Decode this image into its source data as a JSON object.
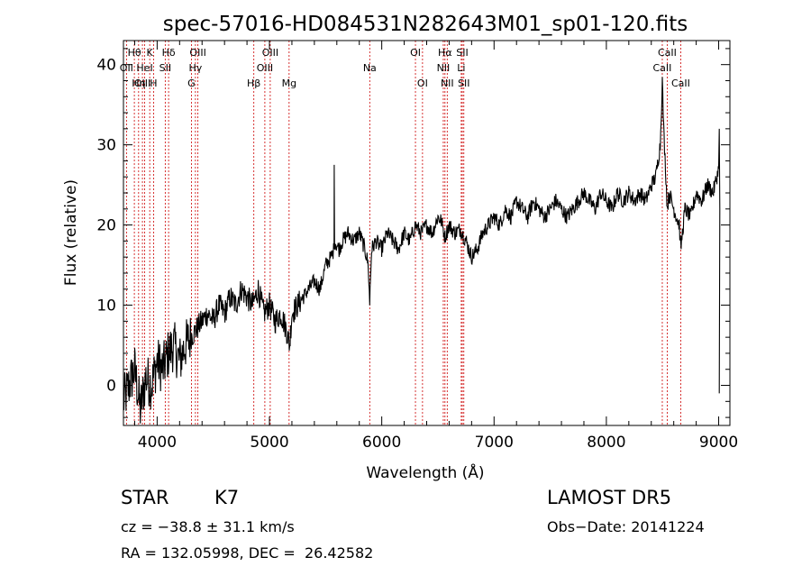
{
  "chart_data": {
    "type": "line",
    "title": "spec-57016-HD084531N282643M01_sp01-120.fits",
    "xlabel": "Wavelength (Å)",
    "ylabel": "Flux (relative)",
    "xlim": [
      3700,
      9100
    ],
    "ylim": [
      -5,
      43
    ],
    "xticks": [
      4000,
      5000,
      6000,
      7000,
      8000,
      9000
    ],
    "yticks": [
      0,
      10,
      20,
      30,
      40
    ],
    "grid": false,
    "series": [
      {
        "x": [
          3700,
          3750,
          3800,
          3850,
          3900,
          3950,
          4000,
          4050,
          4100,
          4150,
          4200,
          4250,
          4300,
          4350,
          4400,
          4450,
          4500,
          4550,
          4600,
          4650,
          4700,
          4750,
          4800,
          4850,
          4900,
          4950,
          5000,
          5050,
          5100,
          5150,
          5180,
          5200,
          5250,
          5300,
          5350,
          5400,
          5450,
          5500,
          5550,
          5575,
          5577,
          5580,
          5620,
          5650,
          5700,
          5750,
          5800,
          5850,
          5880,
          5893,
          5896,
          5910,
          5950,
          6000,
          6050,
          6100,
          6150,
          6200,
          6250,
          6300,
          6350,
          6400,
          6450,
          6500,
          6530,
          6563,
          6600,
          6650,
          6700,
          6750,
          6800,
          6850,
          6900,
          6950,
          7000,
          7050,
          7100,
          7150,
          7200,
          7250,
          7300,
          7350,
          7400,
          7450,
          7500,
          7550,
          7600,
          7650,
          7700,
          7750,
          7800,
          7850,
          7900,
          7950,
          8000,
          8050,
          8100,
          8150,
          8200,
          8250,
          8300,
          8350,
          8400,
          8440,
          8460,
          8480,
          8498,
          8510,
          8530,
          8542,
          8560,
          8600,
          8650,
          8662,
          8700,
          8750,
          8800,
          8850,
          8900,
          8950,
          9000,
          9005,
          9010
        ],
        "y": [
          -2,
          0,
          2,
          -3,
          1,
          0,
          3,
          2,
          4,
          5,
          3,
          5,
          6,
          7,
          8,
          9,
          8,
          10,
          9,
          11,
          10,
          12,
          11,
          10,
          12,
          9,
          10,
          8,
          9,
          7,
          5,
          9,
          10,
          11,
          12,
          13,
          12,
          15,
          16,
          17,
          27.5,
          18,
          17,
          18,
          19,
          18,
          19,
          17,
          15,
          10,
          12,
          17,
          18,
          17,
          19,
          18,
          17,
          19,
          18,
          20,
          19,
          20,
          19,
          21,
          20.5,
          18.5,
          20,
          19,
          19.5,
          18,
          16,
          17,
          19,
          20,
          21,
          20,
          22,
          21,
          23,
          22,
          21,
          23,
          22,
          21,
          22,
          23,
          22,
          21,
          22,
          23,
          24,
          23,
          22,
          24,
          23,
          22,
          24,
          23,
          24,
          23,
          24,
          23,
          25,
          26,
          28,
          30,
          38,
          32,
          26,
          22,
          24,
          22,
          20,
          17,
          22,
          21,
          24,
          23,
          25,
          24,
          27,
          32,
          22
        ]
      }
    ],
    "lines": [
      {
        "label": "Hθ",
        "x": 3797,
        "row": 0
      },
      {
        "label": "K",
        "x": 3934,
        "row": 0
      },
      {
        "label": "Hδ",
        "x": 4102,
        "row": 0
      },
      {
        "label": "OIII",
        "x": 4363,
        "row": 0
      },
      {
        "label": "OIII",
        "x": 5007,
        "row": 0
      },
      {
        "label": "OI",
        "x": 6300,
        "row": 0
      },
      {
        "label": "Hα",
        "x": 6563,
        "row": 0
      },
      {
        "label": "SII",
        "x": 6717,
        "row": 0
      },
      {
        "label": "CaII",
        "x": 8542,
        "row": 0
      },
      {
        "label": "OII",
        "x": 3727,
        "row": 1
      },
      {
        "label": "HeI",
        "x": 3889,
        "row": 1
      },
      {
        "label": "SII",
        "x": 4072,
        "row": 1
      },
      {
        "label": "Hγ",
        "x": 4341,
        "row": 1
      },
      {
        "label": "OIII",
        "x": 4959,
        "row": 1
      },
      {
        "label": "Na",
        "x": 5893,
        "row": 1
      },
      {
        "label": "NII",
        "x": 6548,
        "row": 1
      },
      {
        "label": "Li",
        "x": 6708,
        "row": 1
      },
      {
        "label": "CaII",
        "x": 8498,
        "row": 1
      },
      {
        "label": "OIII",
        "x": 3869,
        "row": 2
      },
      {
        "label": "Hη",
        "x": 3835,
        "row": 2
      },
      {
        "label": "H",
        "x": 3968,
        "row": 2
      },
      {
        "label": "G",
        "x": 4305,
        "row": 2
      },
      {
        "label": "Hβ",
        "x": 4861,
        "row": 2
      },
      {
        "label": "Mg",
        "x": 5175,
        "row": 2
      },
      {
        "label": "OI",
        "x": 6363,
        "row": 2
      },
      {
        "label": "NII",
        "x": 6583,
        "row": 2
      },
      {
        "label": "SII",
        "x": 6731,
        "row": 2
      },
      {
        "label": "CaII",
        "x": 8662,
        "row": 2
      }
    ],
    "line_color": "#cc0000"
  },
  "info": {
    "object_class": "STAR",
    "subclass": "K7",
    "survey": "LAMOST DR5",
    "cz": "cz = −38.8 ± 31.1 km/s",
    "obs_date": "Obs−Date: 20141224",
    "radec": "RA = 132.05998, DEC =  26.42582"
  }
}
